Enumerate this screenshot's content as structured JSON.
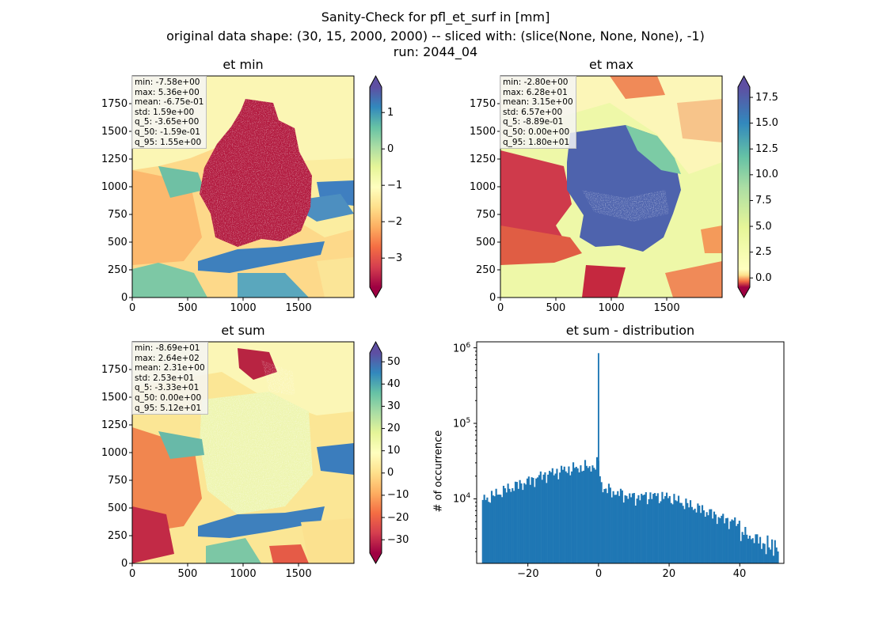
{
  "figure": {
    "title_lines": [
      "Sanity-Check for pfl_et_surf in [mm]",
      "original data shape: (30, 15, 2000, 2000) -- sliced with: (slice(None, None, None), -1)",
      "run: 2044_04"
    ]
  },
  "chart_data": [
    {
      "type": "heatmap",
      "title": "et min",
      "xticks": [
        "0",
        "500",
        "1000",
        "1500"
      ],
      "yticks": [
        "0",
        "250",
        "500",
        "750",
        "1000",
        "1250",
        "1500",
        "1750"
      ],
      "xlim": [
        0,
        2000
      ],
      "ylim": [
        0,
        2000
      ],
      "colormap": "Spectral",
      "colorbar": {
        "range": [
          -3.8,
          1.7
        ],
        "ticks": [
          "1",
          "0",
          "−1",
          "−2",
          "−3"
        ],
        "extend": "both"
      },
      "stats": [
        "min: -7.58e+00",
        "max: 5.36e+00",
        "mean: -6.75e-01",
        "std: 1.59e+00",
        "q_5: -3.65e+00",
        "q_50: -1.59e-01",
        "q_95: 1.55e+00"
      ]
    },
    {
      "type": "heatmap",
      "title": "et max",
      "xticks": [
        "0",
        "500",
        "1000",
        "1500"
      ],
      "yticks": [
        "0",
        "250",
        "500",
        "750",
        "1000",
        "1250",
        "1500",
        "1750"
      ],
      "xlim": [
        0,
        2000
      ],
      "ylim": [
        0,
        2000
      ],
      "colormap": "Spectral",
      "colorbar": {
        "range": [
          -0.9,
          18.5
        ],
        "ticks": [
          "17.5",
          "15.0",
          "12.5",
          "10.0",
          "7.5",
          "5.0",
          "2.5",
          "0.0"
        ],
        "extend": "both"
      },
      "stats": [
        "min: -2.80e+00",
        "max: 6.28e+01",
        "mean: 3.15e+00",
        "std: 6.57e+00",
        "q_5: -8.89e-01",
        "q_50: 0.00e+00",
        "q_95: 1.80e+01"
      ]
    },
    {
      "type": "heatmap",
      "title": "et sum",
      "xticks": [
        "0",
        "500",
        "1000",
        "1500"
      ],
      "yticks": [
        "0",
        "250",
        "500",
        "750",
        "1000",
        "1250",
        "1500",
        "1750"
      ],
      "xlim": [
        0,
        2000
      ],
      "ylim": [
        0,
        2000
      ],
      "colormap": "Spectral",
      "colorbar": {
        "range": [
          -36,
          54
        ],
        "ticks": [
          "50",
          "40",
          "30",
          "20",
          "10",
          "0",
          "−10",
          "−20",
          "−30"
        ],
        "extend": "both"
      },
      "stats": [
        "min: -8.69e+01",
        "max: 2.64e+02",
        "mean: 2.31e+00",
        "std: 2.53e+01",
        "q_5: -3.33e+01",
        "q_50: 0.00e+00",
        "q_95: 5.12e+01"
      ]
    },
    {
      "type": "bar",
      "title": "et sum - distribution",
      "ylabel": "# of occurrence",
      "yscale": "log",
      "xlim": [
        -34.5,
        52.5
      ],
      "ylim": [
        1400,
        1200000
      ],
      "xticks": [
        "−20",
        "0",
        "20",
        "40"
      ],
      "color": "#1f77b4",
      "bin_width": 0.42,
      "envelope": [
        [
          -33,
          9500
        ],
        [
          -30,
          11000
        ],
        [
          -25,
          14000
        ],
        [
          -20,
          17000
        ],
        [
          -15,
          21000
        ],
        [
          -10,
          24000
        ],
        [
          -5,
          26000
        ],
        [
          -1,
          27000
        ],
        [
          0,
          30000
        ],
        [
          1,
          14000
        ],
        [
          5,
          12000
        ],
        [
          10,
          10500
        ],
        [
          15,
          11000
        ],
        [
          20,
          10500
        ],
        [
          25,
          8500
        ],
        [
          30,
          7000
        ],
        [
          35,
          5500
        ],
        [
          40,
          4700
        ],
        [
          45,
          3800
        ],
        [
          48,
          3000
        ],
        [
          51,
          3300
        ]
      ],
      "spike": {
        "x": -0.2,
        "value": 850000
      }
    }
  ]
}
